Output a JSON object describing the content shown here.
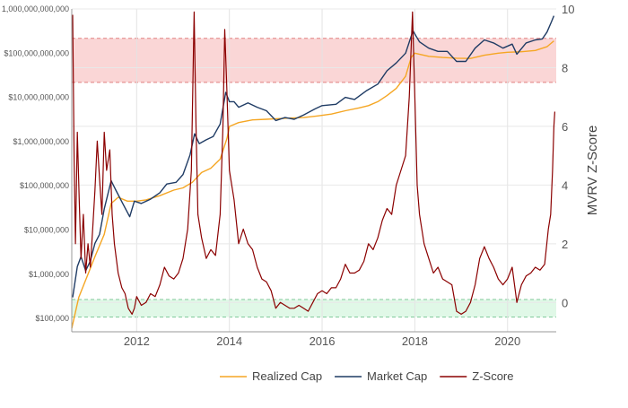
{
  "chart_data": {
    "type": "line",
    "title": "",
    "y_left": {
      "scale": "log",
      "range": [
        50000,
        1000000000000
      ],
      "tick_values": [
        100000,
        1000000,
        10000000,
        100000000,
        1000000000,
        10000000000,
        100000000000,
        1000000000000
      ],
      "tick_labels": [
        "$100,000",
        "$1,000,000",
        "$10,000,000",
        "$100,000,000",
        "$1,000,000,000",
        "$10,000,000,000",
        "$100,000,000,000",
        "1,000,000,000,000"
      ]
    },
    "y_right": {
      "label": "MVRV Z-Score",
      "range": [
        -1,
        10
      ],
      "ticks": [
        "0",
        "2",
        "4",
        "6",
        "8",
        "10"
      ]
    },
    "x_axis": {
      "range": [
        2010.6,
        2021.05
      ],
      "ticks": [
        "2012",
        "2014",
        "2016",
        "2018",
        "2020"
      ]
    },
    "grid": true,
    "bands": [
      {
        "name": "overvalued",
        "axis": "right",
        "from": 7.5,
        "to": 9,
        "color": "#f8c8c8"
      },
      {
        "name": "undervalued",
        "axis": "right",
        "from": -0.5,
        "to": 0.1,
        "color": "#d6f5df"
      }
    ],
    "series": [
      {
        "name": "Realized Cap",
        "axis": "left",
        "color": "#f5a623",
        "points": [
          [
            2010.6,
            60000
          ],
          [
            2010.75,
            300000
          ],
          [
            2010.95,
            1000000
          ],
          [
            2011.1,
            2500000
          ],
          [
            2011.3,
            8000000
          ],
          [
            2011.45,
            40000000
          ],
          [
            2011.6,
            55000000
          ],
          [
            2011.8,
            45000000
          ],
          [
            2012.0,
            45000000
          ],
          [
            2012.2,
            48000000
          ],
          [
            2012.5,
            60000000
          ],
          [
            2012.8,
            80000000
          ],
          [
            2013.0,
            90000000
          ],
          [
            2013.2,
            120000000
          ],
          [
            2013.4,
            200000000
          ],
          [
            2013.6,
            250000000
          ],
          [
            2013.8,
            400000000
          ],
          [
            2013.95,
            1200000000
          ],
          [
            2014.0,
            2200000000
          ],
          [
            2014.2,
            2700000000
          ],
          [
            2014.5,
            3100000000
          ],
          [
            2014.8,
            3200000000
          ],
          [
            2015.0,
            3300000000
          ],
          [
            2015.3,
            3400000000
          ],
          [
            2015.6,
            3500000000
          ],
          [
            2015.9,
            3800000000
          ],
          [
            2016.2,
            4200000000
          ],
          [
            2016.5,
            5000000000
          ],
          [
            2016.8,
            5800000000
          ],
          [
            2017.0,
            6500000000
          ],
          [
            2017.2,
            8000000000
          ],
          [
            2017.4,
            11000000000
          ],
          [
            2017.6,
            16000000000
          ],
          [
            2017.8,
            30000000000
          ],
          [
            2017.92,
            80000000000
          ],
          [
            2018.0,
            100000000000
          ],
          [
            2018.3,
            85000000000
          ],
          [
            2018.6,
            80000000000
          ],
          [
            2018.9,
            77000000000
          ],
          [
            2019.2,
            76000000000
          ],
          [
            2019.5,
            90000000000
          ],
          [
            2019.8,
            100000000000
          ],
          [
            2020.0,
            105000000000
          ],
          [
            2020.3,
            108000000000
          ],
          [
            2020.6,
            115000000000
          ],
          [
            2020.85,
            140000000000
          ],
          [
            2021.0,
            190000000000
          ]
        ]
      },
      {
        "name": "Market Cap",
        "axis": "left",
        "color": "#1f3b64",
        "points": [
          [
            2010.62,
            300000
          ],
          [
            2010.72,
            1500000
          ],
          [
            2010.8,
            2500000
          ],
          [
            2010.9,
            1200000
          ],
          [
            2011.0,
            2000000
          ],
          [
            2011.1,
            5000000
          ],
          [
            2011.2,
            8000000
          ],
          [
            2011.3,
            30000000
          ],
          [
            2011.45,
            130000000
          ],
          [
            2011.55,
            80000000
          ],
          [
            2011.7,
            40000000
          ],
          [
            2011.85,
            20000000
          ],
          [
            2011.95,
            45000000
          ],
          [
            2012.1,
            40000000
          ],
          [
            2012.3,
            50000000
          ],
          [
            2012.5,
            70000000
          ],
          [
            2012.65,
            110000000
          ],
          [
            2012.85,
            120000000
          ],
          [
            2013.0,
            180000000
          ],
          [
            2013.15,
            500000000
          ],
          [
            2013.25,
            1500000000
          ],
          [
            2013.35,
            900000000
          ],
          [
            2013.5,
            1100000000
          ],
          [
            2013.65,
            1300000000
          ],
          [
            2013.8,
            2500000000
          ],
          [
            2013.92,
            13000000000
          ],
          [
            2014.0,
            8000000000
          ],
          [
            2014.1,
            8000000000
          ],
          [
            2014.2,
            6000000000
          ],
          [
            2014.4,
            7500000000
          ],
          [
            2014.6,
            6000000000
          ],
          [
            2014.8,
            5000000000
          ],
          [
            2015.0,
            3000000000
          ],
          [
            2015.2,
            3500000000
          ],
          [
            2015.4,
            3200000000
          ],
          [
            2015.6,
            4000000000
          ],
          [
            2015.85,
            5500000000
          ],
          [
            2016.0,
            6500000000
          ],
          [
            2016.3,
            7000000000
          ],
          [
            2016.5,
            10000000000
          ],
          [
            2016.7,
            9000000000
          ],
          [
            2016.95,
            14000000000
          ],
          [
            2017.2,
            20000000000
          ],
          [
            2017.4,
            40000000000
          ],
          [
            2017.6,
            60000000000
          ],
          [
            2017.8,
            100000000000
          ],
          [
            2017.96,
            320000000000
          ],
          [
            2018.1,
            180000000000
          ],
          [
            2018.3,
            130000000000
          ],
          [
            2018.5,
            110000000000
          ],
          [
            2018.7,
            110000000000
          ],
          [
            2018.9,
            65000000000
          ],
          [
            2019.1,
            65000000000
          ],
          [
            2019.3,
            130000000000
          ],
          [
            2019.5,
            200000000000
          ],
          [
            2019.7,
            170000000000
          ],
          [
            2019.9,
            130000000000
          ],
          [
            2020.1,
            160000000000
          ],
          [
            2020.2,
            95000000000
          ],
          [
            2020.4,
            170000000000
          ],
          [
            2020.6,
            200000000000
          ],
          [
            2020.75,
            210000000000
          ],
          [
            2020.85,
            300000000000
          ],
          [
            2020.95,
            520000000000
          ],
          [
            2021.0,
            700000000000
          ]
        ]
      },
      {
        "name": "Z-Score",
        "axis": "right",
        "color": "#8b0000",
        "points": [
          [
            2010.62,
            9.8
          ],
          [
            2010.65,
            5.0
          ],
          [
            2010.68,
            2.0
          ],
          [
            2010.72,
            5.8
          ],
          [
            2010.76,
            3.5
          ],
          [
            2010.8,
            1.5
          ],
          [
            2010.85,
            3.0
          ],
          [
            2010.9,
            1.0
          ],
          [
            2010.95,
            2.0
          ],
          [
            2011.0,
            1.2
          ],
          [
            2011.05,
            2.5
          ],
          [
            2011.1,
            3.8
          ],
          [
            2011.15,
            5.5
          ],
          [
            2011.2,
            4.2
          ],
          [
            2011.25,
            3.0
          ],
          [
            2011.3,
            5.8
          ],
          [
            2011.35,
            4.5
          ],
          [
            2011.42,
            5.2
          ],
          [
            2011.47,
            3.0
          ],
          [
            2011.52,
            2.0
          ],
          [
            2011.6,
            1.0
          ],
          [
            2011.68,
            0.5
          ],
          [
            2011.75,
            0.3
          ],
          [
            2011.82,
            -0.2
          ],
          [
            2011.9,
            -0.4
          ],
          [
            2011.95,
            -0.2
          ],
          [
            2012.0,
            0.2
          ],
          [
            2012.1,
            -0.1
          ],
          [
            2012.2,
            0.0
          ],
          [
            2012.3,
            0.3
          ],
          [
            2012.4,
            0.2
          ],
          [
            2012.5,
            0.6
          ],
          [
            2012.6,
            1.2
          ],
          [
            2012.7,
            0.9
          ],
          [
            2012.8,
            0.8
          ],
          [
            2012.9,
            1.0
          ],
          [
            2013.0,
            1.5
          ],
          [
            2013.1,
            2.5
          ],
          [
            2013.18,
            4.5
          ],
          [
            2013.24,
            9.9
          ],
          [
            2013.28,
            6.0
          ],
          [
            2013.32,
            3.0
          ],
          [
            2013.4,
            2.2
          ],
          [
            2013.5,
            1.5
          ],
          [
            2013.6,
            1.8
          ],
          [
            2013.7,
            1.6
          ],
          [
            2013.8,
            3.0
          ],
          [
            2013.86,
            6.0
          ],
          [
            2013.9,
            9.3
          ],
          [
            2013.94,
            7.5
          ],
          [
            2014.0,
            4.5
          ],
          [
            2014.1,
            3.5
          ],
          [
            2014.2,
            2.0
          ],
          [
            2014.3,
            2.5
          ],
          [
            2014.4,
            2.0
          ],
          [
            2014.5,
            1.8
          ],
          [
            2014.6,
            1.2
          ],
          [
            2014.7,
            0.8
          ],
          [
            2014.8,
            0.7
          ],
          [
            2014.9,
            0.4
          ],
          [
            2015.0,
            -0.2
          ],
          [
            2015.1,
            0.0
          ],
          [
            2015.2,
            -0.1
          ],
          [
            2015.3,
            -0.2
          ],
          [
            2015.4,
            -0.2
          ],
          [
            2015.5,
            -0.1
          ],
          [
            2015.6,
            -0.2
          ],
          [
            2015.7,
            -0.3
          ],
          [
            2015.8,
            0.0
          ],
          [
            2015.9,
            0.3
          ],
          [
            2016.0,
            0.4
          ],
          [
            2016.1,
            0.3
          ],
          [
            2016.2,
            0.5
          ],
          [
            2016.3,
            0.5
          ],
          [
            2016.4,
            0.8
          ],
          [
            2016.5,
            1.3
          ],
          [
            2016.6,
            1.0
          ],
          [
            2016.7,
            1.0
          ],
          [
            2016.8,
            1.1
          ],
          [
            2016.9,
            1.4
          ],
          [
            2017.0,
            2.0
          ],
          [
            2017.1,
            1.8
          ],
          [
            2017.2,
            2.2
          ],
          [
            2017.3,
            2.8
          ],
          [
            2017.4,
            3.2
          ],
          [
            2017.5,
            3.0
          ],
          [
            2017.6,
            4.0
          ],
          [
            2017.7,
            4.5
          ],
          [
            2017.8,
            5.0
          ],
          [
            2017.88,
            7.0
          ],
          [
            2017.95,
            9.9
          ],
          [
            2018.0,
            7.0
          ],
          [
            2018.05,
            4.0
          ],
          [
            2018.1,
            3.0
          ],
          [
            2018.2,
            2.0
          ],
          [
            2018.3,
            1.5
          ],
          [
            2018.4,
            1.0
          ],
          [
            2018.5,
            1.2
          ],
          [
            2018.6,
            0.8
          ],
          [
            2018.7,
            0.7
          ],
          [
            2018.8,
            0.6
          ],
          [
            2018.9,
            -0.3
          ],
          [
            2019.0,
            -0.4
          ],
          [
            2019.1,
            -0.3
          ],
          [
            2019.2,
            0.0
          ],
          [
            2019.3,
            0.6
          ],
          [
            2019.4,
            1.5
          ],
          [
            2019.5,
            1.9
          ],
          [
            2019.6,
            1.5
          ],
          [
            2019.7,
            1.2
          ],
          [
            2019.8,
            0.8
          ],
          [
            2019.9,
            0.6
          ],
          [
            2020.0,
            0.8
          ],
          [
            2020.1,
            1.2
          ],
          [
            2020.2,
            0.0
          ],
          [
            2020.3,
            0.6
          ],
          [
            2020.4,
            0.9
          ],
          [
            2020.5,
            1.0
          ],
          [
            2020.6,
            1.2
          ],
          [
            2020.7,
            1.1
          ],
          [
            2020.8,
            1.3
          ],
          [
            2020.88,
            2.5
          ],
          [
            2020.93,
            3.0
          ],
          [
            2020.97,
            4.5
          ],
          [
            2021.0,
            6.0
          ],
          [
            2021.02,
            6.5
          ]
        ]
      }
    ],
    "legend": {
      "position": "bottom",
      "items": [
        {
          "label": "Realized Cap",
          "color": "#f5a623"
        },
        {
          "label": "Market Cap",
          "color": "#1f3b64"
        },
        {
          "label": "Z-Score",
          "color": "#8b0000"
        }
      ]
    }
  }
}
